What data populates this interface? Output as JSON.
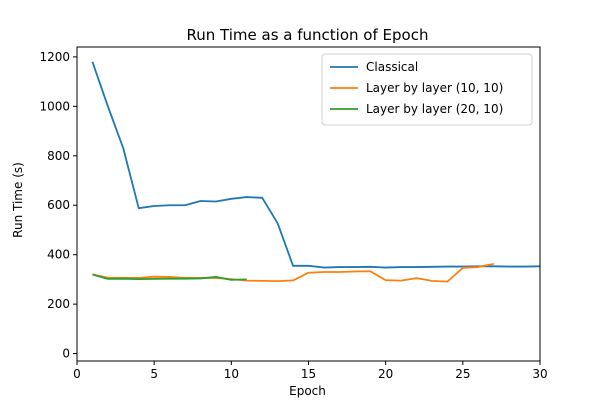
{
  "chart_data": {
    "type": "line",
    "title": "Run Time as a function of Epoch",
    "xlabel": "Epoch",
    "ylabel": "Run Time (s)",
    "xlim": [
      0,
      30
    ],
    "ylim": [
      -30,
      1240
    ],
    "xticks": [
      0,
      5,
      10,
      15,
      20,
      25,
      30
    ],
    "yticks": [
      0,
      200,
      400,
      600,
      800,
      1000,
      1200
    ],
    "grid": false,
    "legend_position": "top-right",
    "series": [
      {
        "name": "Classical",
        "color": "#1f77b4",
        "x": [
          1,
          2,
          3,
          4,
          5,
          6,
          7,
          8,
          9,
          10,
          11,
          12,
          13,
          14,
          15,
          16,
          17,
          18,
          19,
          20,
          21,
          22,
          23,
          24,
          25,
          26,
          27,
          28,
          29,
          30
        ],
        "y": [
          1180,
          1000,
          830,
          588,
          597,
          600,
          600,
          617,
          615,
          626,
          633,
          630,
          527,
          355,
          355,
          348,
          350,
          350,
          351,
          348,
          350,
          350,
          351,
          352,
          352,
          353,
          353,
          352,
          352,
          353
        ]
      },
      {
        "name": "Layer by layer (10, 10)",
        "color": "#ff7f0e",
        "x": [
          1,
          2,
          3,
          4,
          5,
          6,
          7,
          8,
          9,
          10,
          11,
          12,
          13,
          14,
          15,
          16,
          17,
          18,
          19,
          20,
          21,
          22,
          23,
          24,
          25,
          26,
          27
        ],
        "y": [
          320,
          307,
          306,
          306,
          311,
          310,
          306,
          306,
          306,
          301,
          295,
          294,
          293,
          296,
          327,
          330,
          330,
          332,
          333,
          297,
          295,
          305,
          294,
          291,
          347,
          350,
          363
        ]
      },
      {
        "name": "Layer by layer (20, 10)",
        "color": "#2ca02c",
        "x": [
          1,
          2,
          3,
          4,
          5,
          6,
          7,
          8,
          9,
          10,
          11
        ],
        "y": [
          320,
          302,
          303,
          301,
          302,
          303,
          303,
          304,
          310,
          298,
          300
        ]
      }
    ]
  }
}
